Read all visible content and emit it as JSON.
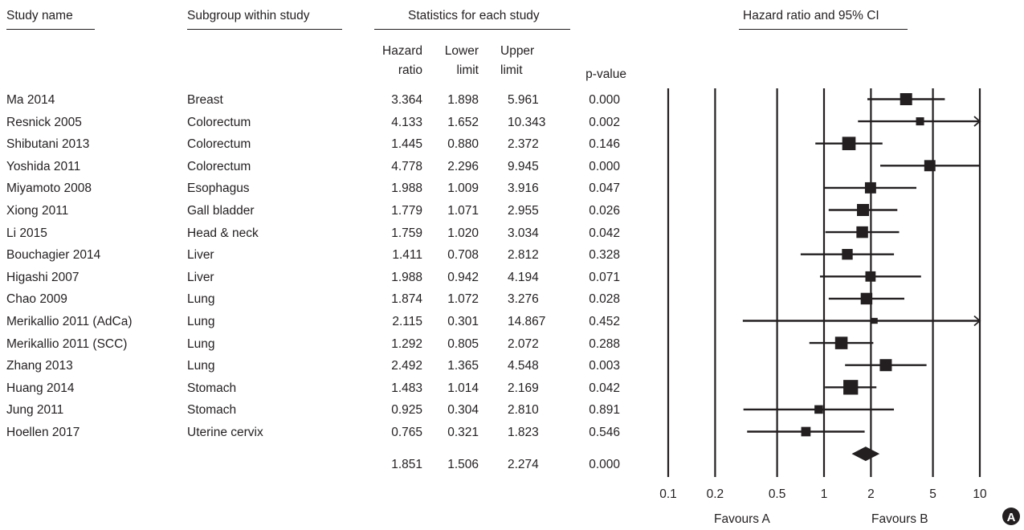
{
  "headers": {
    "study_name": "Study name",
    "subgroup": "Subgroup within study",
    "statistics": "Statistics for each study",
    "plot_title": "Hazard ratio and 95% CI",
    "hazard_1": "Hazard",
    "hazard_2": "ratio",
    "lower_1": "Lower",
    "lower_2": "limit",
    "upper_1": "Upper",
    "upper_2": "limit",
    "pvalue": "p-value"
  },
  "rows": [
    {
      "study": "Ma 2014",
      "subgroup": "Breast",
      "hr": "3.364",
      "lower": "1.898",
      "upper": "5.961",
      "p": "0.000"
    },
    {
      "study": "Resnick 2005",
      "subgroup": "Colorectum",
      "hr": "4.133",
      "lower": "1.652",
      "upper": "10.343",
      "p": "0.002"
    },
    {
      "study": "Shibutani 2013",
      "subgroup": "Colorectum",
      "hr": "1.445",
      "lower": "0.880",
      "upper": "2.372",
      "p": "0.146"
    },
    {
      "study": "Yoshida 2011",
      "subgroup": "Colorectum",
      "hr": "4.778",
      "lower": "2.296",
      "upper": "9.945",
      "p": "0.000"
    },
    {
      "study": "Miyamoto 2008",
      "subgroup": "Esophagus",
      "hr": "1.988",
      "lower": "1.009",
      "upper": "3.916",
      "p": "0.047"
    },
    {
      "study": "Xiong 2011",
      "subgroup": "Gall bladder",
      "hr": "1.779",
      "lower": "1.071",
      "upper": "2.955",
      "p": "0.026"
    },
    {
      "study": "Li 2015",
      "subgroup": "Head & neck",
      "hr": "1.759",
      "lower": "1.020",
      "upper": "3.034",
      "p": "0.042"
    },
    {
      "study": "Bouchagier 2014",
      "subgroup": "Liver",
      "hr": "1.411",
      "lower": "0.708",
      "upper": "2.812",
      "p": "0.328"
    },
    {
      "study": "Higashi 2007",
      "subgroup": "Liver",
      "hr": "1.988",
      "lower": "0.942",
      "upper": "4.194",
      "p": "0.071"
    },
    {
      "study": "Chao 2009",
      "subgroup": "Lung",
      "hr": "1.874",
      "lower": "1.072",
      "upper": "3.276",
      "p": "0.028"
    },
    {
      "study": "Merikallio 2011 (AdCa)",
      "subgroup": "Lung",
      "hr": "2.115",
      "lower": "0.301",
      "upper": "14.867",
      "p": "0.452"
    },
    {
      "study": "Merikallio 2011 (SCC)",
      "subgroup": "Lung",
      "hr": "1.292",
      "lower": "0.805",
      "upper": "2.072",
      "p": "0.288"
    },
    {
      "study": "Zhang 2013",
      "subgroup": "Lung",
      "hr": "2.492",
      "lower": "1.365",
      "upper": "4.548",
      "p": "0.003"
    },
    {
      "study": "Huang 2014",
      "subgroup": "Stomach",
      "hr": "1.483",
      "lower": "1.014",
      "upper": "2.169",
      "p": "0.042"
    },
    {
      "study": "Jung 2011",
      "subgroup": "Stomach",
      "hr": "0.925",
      "lower": "0.304",
      "upper": "2.810",
      "p": "0.891"
    },
    {
      "study": "Hoellen 2017",
      "subgroup": "Uterine cervix",
      "hr": "0.765",
      "lower": "0.321",
      "upper": "1.823",
      "p": "0.546"
    }
  ],
  "summary": {
    "hr": "1.851",
    "lower": "1.506",
    "upper": "2.274",
    "p": "0.000"
  },
  "favours": {
    "left": "Favours A",
    "right": "Favours B"
  },
  "panel_label": "A",
  "colors": {
    "ink": "#231f20",
    "panel_badge": "#231f20"
  },
  "chart_data": {
    "type": "forest",
    "title": "Hazard ratio and 95% CI",
    "scale": "log",
    "xlim": [
      0.1,
      10
    ],
    "x_ticks": [
      0.1,
      0.2,
      0.5,
      1,
      2,
      5,
      10
    ],
    "x_tick_labels": [
      "0.1",
      "0.2",
      "0.5",
      "1",
      "2",
      "5",
      "10"
    ],
    "reference_line": 1,
    "vertical_lines_at": [
      0.1,
      0.2,
      0.5,
      1,
      2,
      5,
      10
    ],
    "weights": [
      1.0,
      0.55,
      1.15,
      0.9,
      0.9,
      1.0,
      0.95,
      0.85,
      0.8,
      0.95,
      0.3,
      1.05,
      1.0,
      1.3,
      0.6,
      0.7
    ],
    "studies": [
      {
        "label": "Ma 2014",
        "hr": 3.364,
        "lower": 1.898,
        "upper": 5.961
      },
      {
        "label": "Resnick 2005",
        "hr": 4.133,
        "lower": 1.652,
        "upper": 10.343
      },
      {
        "label": "Shibutani 2013",
        "hr": 1.445,
        "lower": 0.88,
        "upper": 2.372
      },
      {
        "label": "Yoshida 2011",
        "hr": 4.778,
        "lower": 2.296,
        "upper": 9.945
      },
      {
        "label": "Miyamoto 2008",
        "hr": 1.988,
        "lower": 1.009,
        "upper": 3.916
      },
      {
        "label": "Xiong 2011",
        "hr": 1.779,
        "lower": 1.071,
        "upper": 2.955
      },
      {
        "label": "Li 2015",
        "hr": 1.759,
        "lower": 1.02,
        "upper": 3.034
      },
      {
        "label": "Bouchagier 2014",
        "hr": 1.411,
        "lower": 0.708,
        "upper": 2.812
      },
      {
        "label": "Higashi 2007",
        "hr": 1.988,
        "lower": 0.942,
        "upper": 4.194
      },
      {
        "label": "Chao 2009",
        "hr": 1.874,
        "lower": 1.072,
        "upper": 3.276
      },
      {
        "label": "Merikallio 2011 (AdCa)",
        "hr": 2.115,
        "lower": 0.301,
        "upper": 14.867
      },
      {
        "label": "Merikallio 2011 (SCC)",
        "hr": 1.292,
        "lower": 0.805,
        "upper": 2.072
      },
      {
        "label": "Zhang 2013",
        "hr": 2.492,
        "lower": 1.365,
        "upper": 4.548
      },
      {
        "label": "Huang 2014",
        "hr": 1.483,
        "lower": 1.014,
        "upper": 2.169
      },
      {
        "label": "Jung 2011",
        "hr": 0.925,
        "lower": 0.304,
        "upper": 2.81
      },
      {
        "label": "Hoellen 2017",
        "hr": 0.765,
        "lower": 0.321,
        "upper": 1.823
      }
    ],
    "summary": {
      "hr": 1.851,
      "lower": 1.506,
      "upper": 2.274
    }
  }
}
